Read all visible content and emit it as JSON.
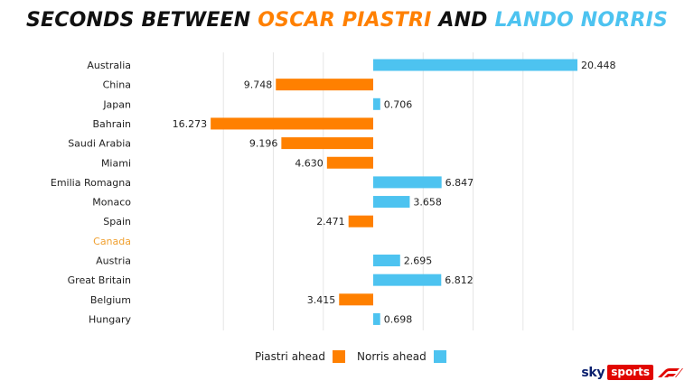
{
  "title": {
    "part1": "SECONDS BETWEEN ",
    "part2": "OSCAR  PIASTRI",
    "part3": " AND ",
    "part4": "LANDO NORRIS"
  },
  "colors": {
    "piastri": "#ff8000",
    "norris": "#4dc3f0",
    "title_dark": "#111111",
    "highlight_label": "#f0a030",
    "gridline": "#e6e6e6"
  },
  "chart_data": {
    "type": "bar",
    "orientation": "horizontal",
    "categories": [
      "Australia",
      "China",
      "Japan",
      "Bahrain",
      "Saudi Arabia",
      "Miami",
      "Emilia Romagna",
      "Monaco",
      "Spain",
      "Canada",
      "Austria",
      "Great Britain",
      "Belgium",
      "Hungary"
    ],
    "values": [
      20.448,
      -9.748,
      0.706,
      -16.273,
      -9.196,
      -4.63,
      6.847,
      3.658,
      -2.471,
      null,
      2.695,
      6.812,
      -3.415,
      0.698
    ],
    "value_labels": [
      "20.448",
      "9.748",
      "0.706",
      "16.273",
      "9.196",
      "4.630",
      "6.847",
      "3.658",
      "2.471",
      "",
      "2.695",
      "6.812",
      "3.415",
      "0.698"
    ],
    "highlighted_category": "Canada",
    "xlim": [
      -16.273,
      20.448
    ],
    "grid": true,
    "series": [
      {
        "name": "Piastri ahead",
        "sign": "negative"
      },
      {
        "name": "Norris ahead",
        "sign": "positive"
      }
    ]
  },
  "legend": {
    "piastri_label": "Piastri ahead",
    "norris_label": "Norris ahead"
  },
  "brand": {
    "sky": "sky",
    "sports": "sports"
  }
}
